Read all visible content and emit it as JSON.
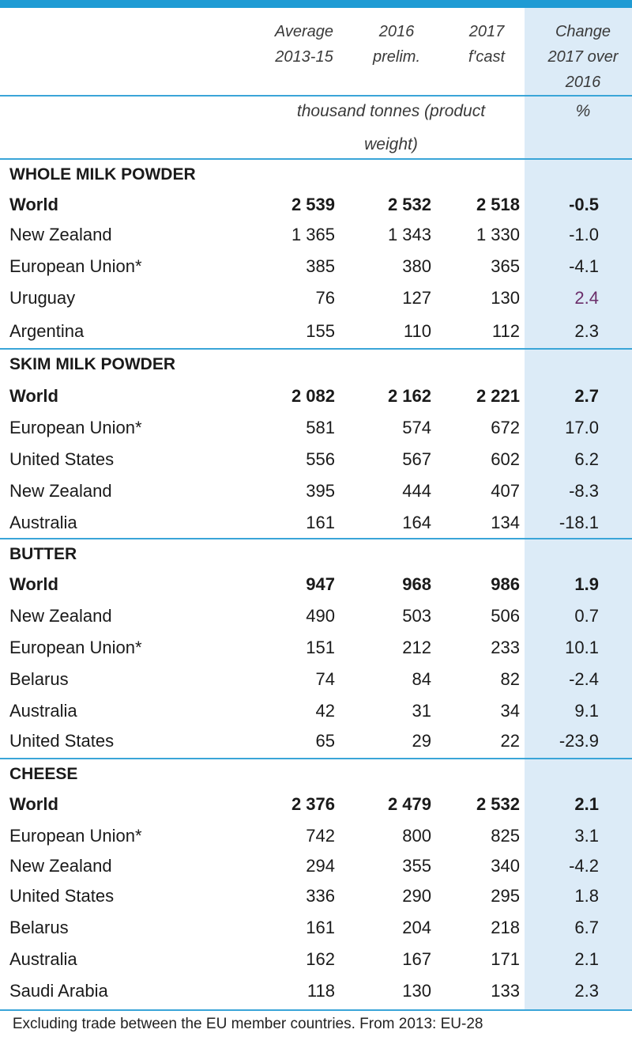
{
  "columns": {
    "col1": [
      "Average",
      "2013-15"
    ],
    "col2": [
      "2016",
      "prelim."
    ],
    "col3": [
      "2017",
      "f'cast"
    ],
    "col4": [
      "Change",
      "2017 over",
      "2016"
    ]
  },
  "units": {
    "main": [
      "thousand tonnes (product",
      "weight)"
    ],
    "change": "%"
  },
  "sections": [
    {
      "title": "WHOLE MILK POWDER",
      "rows": [
        {
          "label": "World",
          "v1": "2 539",
          "v2": "2 532",
          "v3": "2 518",
          "change": "-0.5",
          "bold": true
        },
        {
          "label": "New Zealand",
          "v1": "1 365",
          "v2": "1 343",
          "v3": "1 330",
          "change": "-1.0"
        },
        {
          "label": "European Union*",
          "v1": "385",
          "v2": "380",
          "v3": "365",
          "change": "-4.1"
        },
        {
          "label": "Uruguay",
          "v1": "76",
          "v2": "127",
          "v3": "130",
          "change": "2.4",
          "purple": true
        },
        {
          "label": "Argentina",
          "v1": "155",
          "v2": "110",
          "v3": "112",
          "change": "2.3"
        }
      ]
    },
    {
      "title": "SKIM MILK POWDER",
      "rows": [
        {
          "label": "World",
          "v1": "2 082",
          "v2": "2 162",
          "v3": "2 221",
          "change": "2.7",
          "bold": true
        },
        {
          "label": "European Union*",
          "v1": "581",
          "v2": "574",
          "v3": "672",
          "change": "17.0"
        },
        {
          "label": "United States",
          "v1": "556",
          "v2": "567",
          "v3": "602",
          "change": "6.2"
        },
        {
          "label": "New Zealand",
          "v1": "395",
          "v2": "444",
          "v3": "407",
          "change": "-8.3"
        },
        {
          "label": "Australia",
          "v1": "161",
          "v2": "164",
          "v3": "134",
          "change": "-18.1"
        }
      ]
    },
    {
      "title": "BUTTER",
      "rows": [
        {
          "label": "World",
          "v1": "947",
          "v2": "968",
          "v3": "986",
          "change": "1.9",
          "bold": true
        },
        {
          "label": "New Zealand",
          "v1": "490",
          "v2": "503",
          "v3": "506",
          "change": "0.7"
        },
        {
          "label": "European Union*",
          "v1": "151",
          "v2": "212",
          "v3": "233",
          "change": "10.1"
        },
        {
          "label": "Belarus",
          "v1": "74",
          "v2": "84",
          "v3": "82",
          "change": "-2.4"
        },
        {
          "label": "Australia",
          "v1": "42",
          "v2": "31",
          "v3": "34",
          "change": "9.1"
        },
        {
          "label": "United States",
          "v1": "65",
          "v2": "29",
          "v3": "22",
          "change": "-23.9"
        }
      ]
    },
    {
      "title": "CHEESE",
      "rows": [
        {
          "label": "World",
          "v1": "2 376",
          "v2": "2 479",
          "v3": "2 532",
          "change": "2.1",
          "bold": true
        },
        {
          "label": "European Union*",
          "v1": "742",
          "v2": "800",
          "v3": "825",
          "change": "3.1"
        },
        {
          "label": "New Zealand",
          "v1": "294",
          "v2": "355",
          "v3": "340",
          "change": "-4.2"
        },
        {
          "label": "United States",
          "v1": "336",
          "v2": "290",
          "v3": "295",
          "change": "1.8"
        },
        {
          "label": "Belarus",
          "v1": "161",
          "v2": "204",
          "v3": "218",
          "change": "6.7"
        },
        {
          "label": "Australia",
          "v1": "162",
          "v2": "167",
          "v3": "171",
          "change": "2.1"
        },
        {
          "label": "Saudi Arabia",
          "v1": "118",
          "v2": "130",
          "v3": "133",
          "change": "2.3"
        }
      ]
    }
  ],
  "footnote": "Excluding trade between the EU member countries. From 2013: EU-28",
  "colors": {
    "accent": "#3aa5d8",
    "change_column_bg": "#dcebf7",
    "highlight": "#6a2d6a"
  }
}
